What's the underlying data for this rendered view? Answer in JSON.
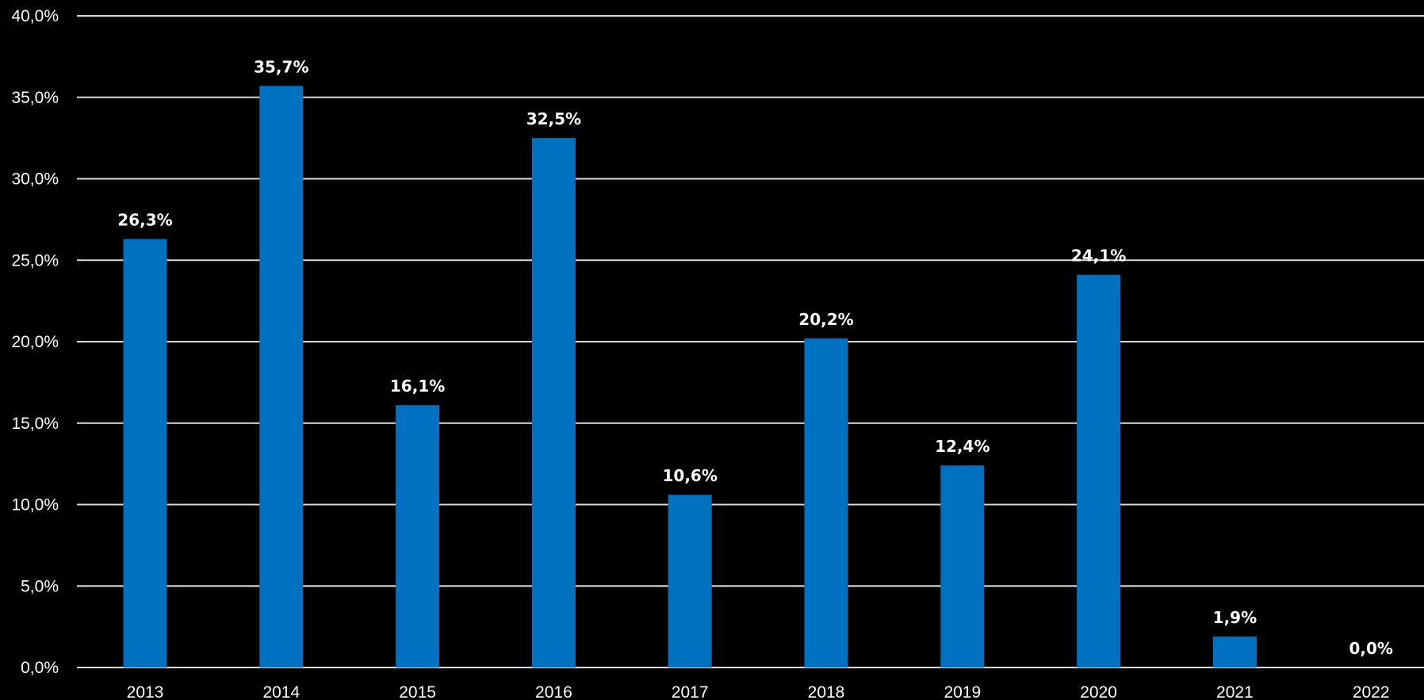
{
  "chart_data": {
    "type": "bar",
    "categories": [
      "2013",
      "2014",
      "2015",
      "2016",
      "2017",
      "2018",
      "2019",
      "2020",
      "2021",
      "2022"
    ],
    "values": [
      26.3,
      35.7,
      16.1,
      32.5,
      10.6,
      20.2,
      12.4,
      24.1,
      1.9,
      0.0
    ],
    "data_labels": [
      "26,3%",
      "35,7%",
      "16,1%",
      "32,5%",
      "10,6%",
      "20,2%",
      "12,4%",
      "24,1%",
      "1,9%",
      "0,0%"
    ],
    "y_ticks": [
      0,
      5,
      10,
      15,
      20,
      25,
      30,
      35,
      40
    ],
    "y_tick_labels": [
      "0,0%",
      "5,0%",
      "10,0%",
      "15,0%",
      "20,0%",
      "25,0%",
      "30,0%",
      "35,0%",
      "40,0%"
    ],
    "ylim": [
      0,
      40
    ],
    "grid": true,
    "legend": "none",
    "colors": {
      "background": "#000000",
      "bar": "#0070c0",
      "grid": "#d9d9d9",
      "text": "#ffffff"
    }
  }
}
